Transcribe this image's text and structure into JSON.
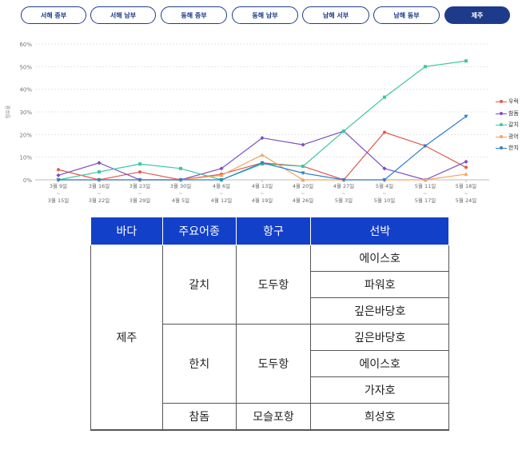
{
  "tabs": [
    {
      "label": "서해 중부",
      "active": false
    },
    {
      "label": "서해 남부",
      "active": false
    },
    {
      "label": "동해 중부",
      "active": false
    },
    {
      "label": "동해 남부",
      "active": false
    },
    {
      "label": "남해 서부",
      "active": false
    },
    {
      "label": "남해 동부",
      "active": false
    },
    {
      "label": "제주",
      "active": true
    }
  ],
  "chart_data": {
    "type": "line",
    "ylabel": "점유율",
    "ylim": [
      0,
      60
    ],
    "yticks": [
      "0%",
      "10%",
      "20%",
      "30%",
      "40%",
      "50%",
      "60%"
    ],
    "grid": true,
    "legend_position": "right",
    "categories": [
      [
        "3월 9일",
        "3월 15일"
      ],
      [
        "3월 16일",
        "3월 22일"
      ],
      [
        "3월 23일",
        "3월 29일"
      ],
      [
        "3월 30일",
        "4월 5일"
      ],
      [
        "4월 6일",
        "4월 12일"
      ],
      [
        "4월 13일",
        "4월 19일"
      ],
      [
        "4월 20일",
        "4월 26일"
      ],
      [
        "4월 27일",
        "5월 3일"
      ],
      [
        "5월 4일",
        "5월 10일"
      ],
      [
        "5월 11일",
        "5월 17일"
      ],
      [
        "5월 18일",
        "5월 24일"
      ]
    ],
    "series": [
      {
        "name": "우럭",
        "color": "#e05a4f",
        "marker": "circle",
        "values": [
          4.5,
          0,
          3.5,
          0,
          2.5,
          7.5,
          6,
          0,
          21,
          15,
          5.5
        ]
      },
      {
        "name": "참돔",
        "color": "#7b4fc4",
        "marker": "diamond",
        "values": [
          2,
          7.5,
          0,
          0,
          5,
          18.5,
          15.5,
          21.5,
          5,
          0,
          8
        ]
      },
      {
        "name": "갈치",
        "color": "#3cc7a0",
        "marker": "square",
        "values": [
          0,
          3.5,
          7,
          5,
          0,
          7,
          6,
          21.5,
          36.5,
          50,
          52.5
        ]
      },
      {
        "name": "광어",
        "color": "#f5a35c",
        "marker": "triangle",
        "values": [
          0,
          0,
          0,
          0,
          2,
          11,
          0,
          0,
          0,
          0,
          2.5
        ]
      },
      {
        "name": "한치",
        "color": "#2e7fd1",
        "marker": "triangle-down",
        "values": [
          0,
          0,
          0,
          0,
          0,
          7.5,
          3,
          0,
          0,
          15,
          28
        ]
      }
    ]
  },
  "table": {
    "headers": [
      "바다",
      "주요어종",
      "항구",
      "선박"
    ],
    "sea": "제주",
    "groups": [
      {
        "species": "갈치",
        "port": "도두항",
        "vessels": [
          "에이스호",
          "파워호",
          "깊은바당호"
        ]
      },
      {
        "species": "한치",
        "port": "도두항",
        "vessels": [
          "깊은바당호",
          "에이스호",
          "가자호"
        ]
      },
      {
        "species": "참돔",
        "port": "모슬포항",
        "vessels": [
          "희성호"
        ]
      }
    ]
  }
}
